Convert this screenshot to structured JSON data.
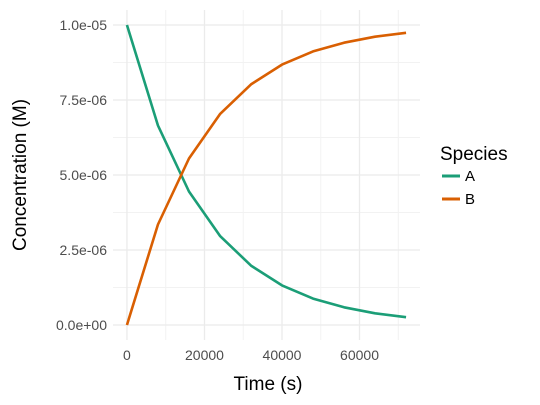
{
  "chart_data": {
    "type": "line",
    "title": "",
    "xlabel": "Time (s)",
    "ylabel": "Concentration (M)",
    "xlim": [
      -3600,
      75600
    ],
    "ylim": [
      -5e-07,
      1.05e-05
    ],
    "x_ticks": [
      0,
      20000,
      40000,
      60000
    ],
    "x_tick_labels": [
      "0",
      "20000",
      "40000",
      "60000"
    ],
    "y_ticks": [
      0,
      2.5e-06,
      5e-06,
      7.5e-06,
      1e-05
    ],
    "y_tick_labels": [
      "0.0e+00",
      "2.5e-06",
      "5.0e-06",
      "7.5e-06",
      "1.0e-05"
    ],
    "grid": true,
    "legend": {
      "title": "Species",
      "position": "right"
    },
    "x": [
      0,
      8000,
      16000,
      24000,
      32000,
      40000,
      48000,
      56000,
      64000,
      72000
    ],
    "series": [
      {
        "name": "A",
        "color": "#1b9e77",
        "values": [
          1e-05,
          6.65e-06,
          4.45e-06,
          2.97e-06,
          1.98e-06,
          1.32e-06,
          8.8e-07,
          5.9e-07,
          3.9e-07,
          2.6e-07
        ]
      },
      {
        "name": "B",
        "color": "#d95f02",
        "values": [
          0.0,
          3.35e-06,
          5.55e-06,
          7.03e-06,
          8.02e-06,
          8.68e-06,
          9.12e-06,
          9.41e-06,
          9.61e-06,
          9.74e-06
        ]
      }
    ]
  }
}
